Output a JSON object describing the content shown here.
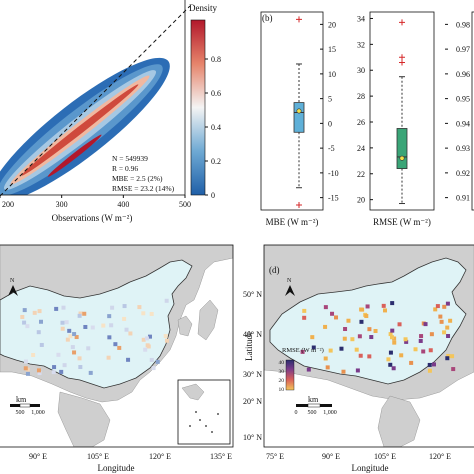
{
  "panels": {
    "b_label": "(b)",
    "d_label": "(d)"
  },
  "density": {
    "colorbar_title": "Density",
    "colorbar_ticks": [
      "0.8",
      "0.6",
      "0.4",
      "0.2",
      "0"
    ],
    "x_ticks": [
      "200",
      "300",
      "400",
      "500"
    ],
    "x_tick_values": [
      200,
      300,
      400,
      500
    ],
    "xlabel": "Observations (W m⁻²)",
    "stats": [
      "N = 549939",
      "R = 0.96",
      "MBE = 2.5 (2%)",
      "RMSE = 23.2 (14%)"
    ]
  },
  "boxplots": {
    "mbe": {
      "label": "MBE (W m⁻²)",
      "y_ticks": [
        "20",
        "15",
        "10",
        "5",
        "0",
        "-5",
        "-10",
        "-15"
      ],
      "y_tick_values": [
        20,
        15,
        10,
        5,
        0,
        -5,
        -10,
        -15
      ],
      "ylim": [
        -17.5,
        22.5
      ],
      "whisker_low": -13,
      "q1": -1.8,
      "median": 2.2,
      "q3": 4.2,
      "whisker_high": 12,
      "mean": 2.5,
      "outliers": [
        21,
        -16.5
      ],
      "color": "#5fb0d8"
    },
    "rmse": {
      "label": "RMSE (W m⁻²)",
      "y_ticks": [
        "34",
        "32",
        "30",
        "28",
        "26",
        "24",
        "22",
        "20"
      ],
      "y_tick_values": [
        34,
        32,
        30,
        28,
        26,
        24,
        22,
        20
      ],
      "ylim": [
        19.2,
        34.5
      ],
      "whisker_low": 19.7,
      "q1": 22.4,
      "median": 23.3,
      "q3": 25.5,
      "whisker_high": 29.5,
      "mean": 23.2,
      "outliers": [
        33.7,
        31,
        30.6
      ],
      "color": "#3aa577"
    },
    "r_partial": {
      "y_ticks": [
        "0.98",
        "0.97",
        "0.96",
        "0.95",
        "0.94",
        "0.93",
        "0.92",
        "0.91"
      ],
      "y_tick_values": [
        0.98,
        0.97,
        0.96,
        0.95,
        0.94,
        0.93,
        0.92,
        0.91
      ]
    }
  },
  "map_c": {
    "lon_ticks": [
      "90° E",
      "105° E",
      "120° E",
      "135° E"
    ],
    "xlabel": "Longitude",
    "north": "N",
    "scale_label": "km",
    "scale_ticks": [
      "0",
      "500",
      "1,000"
    ]
  },
  "map_d": {
    "lon_ticks": [
      "75° E",
      "90° E",
      "105° E",
      "120° E"
    ],
    "lat_ticks": [
      "50° N",
      "40° N",
      "30° N",
      "20° N",
      "10° N"
    ],
    "xlabel": "Longitude",
    "ylabel": "Latitude",
    "north": "N",
    "legend_title": "RMSE (W m⁻²)",
    "legend_ticks": [
      "40",
      "30",
      "20",
      "10"
    ],
    "scale_label": "km",
    "scale_ticks": [
      "0",
      "500",
      "1,000"
    ]
  },
  "colors": {
    "ocean": "#ffffff",
    "land_other": "#cfcfcf",
    "china": "#dff3f6",
    "density_low": "#1f5fa8",
    "density_high": "#b2182b"
  }
}
